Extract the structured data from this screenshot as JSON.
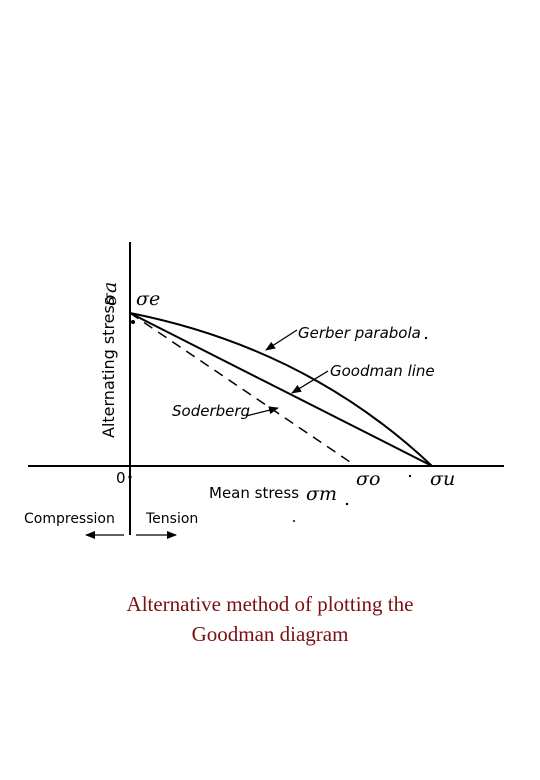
{
  "diagram": {
    "y_axis_label": "Alternating stress",
    "y_axis_symbol": "σa",
    "x_axis_label": "Mean stress",
    "x_axis_symbol": "σm",
    "origin_label": "0",
    "sigma_e": "σe",
    "sigma_o": "σo",
    "sigma_u": "σu",
    "curves": {
      "gerber": "Gerber parabola",
      "goodman": "Goodman line",
      "soderberg": "Soderberg"
    },
    "compression_label": "Compression",
    "tension_label": "Tension"
  },
  "caption": {
    "line1": "Alternative method of plotting the",
    "line2": "Goodman diagram"
  }
}
